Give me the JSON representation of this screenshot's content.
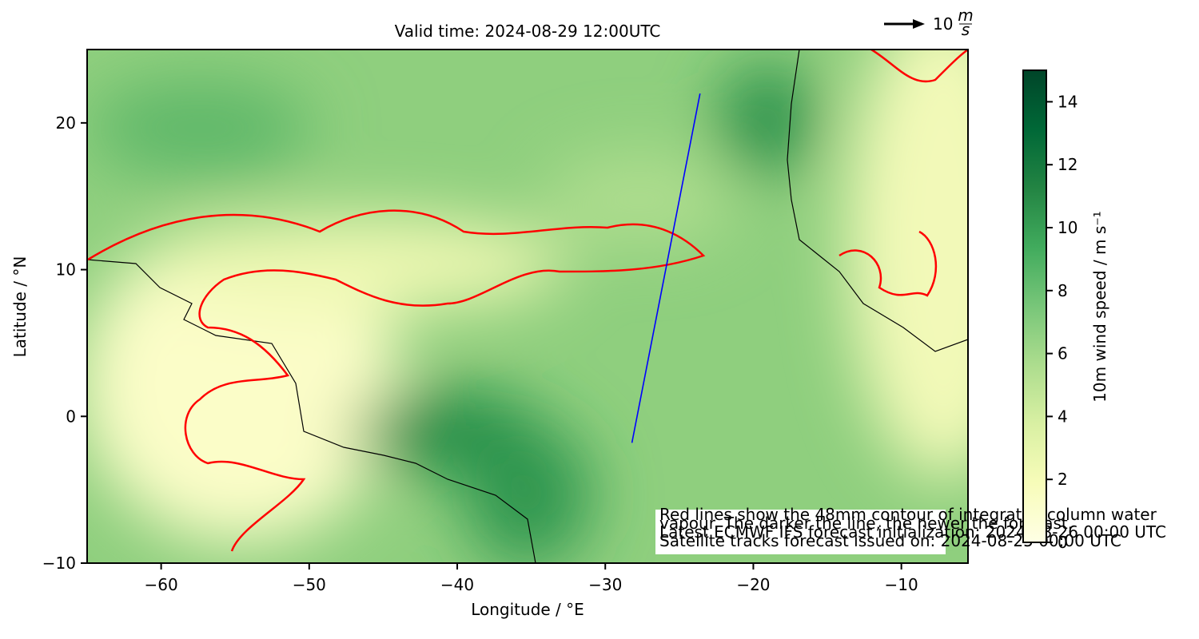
{
  "chart_data": {
    "type": "map",
    "title": "Valid time: 2024-08-29 12:00UTC",
    "xlabel": "Longitude / °E",
    "ylabel": "Latitude / °N",
    "xlim": [
      -65,
      -5.5
    ],
    "ylim": [
      -10,
      25
    ],
    "xticks": [
      {
        "value": -60,
        "label": "−60"
      },
      {
        "value": -50,
        "label": "−50"
      },
      {
        "value": -40,
        "label": "−40"
      },
      {
        "value": -30,
        "label": "−30"
      },
      {
        "value": -20,
        "label": "−20"
      },
      {
        "value": -10,
        "label": "−10"
      }
    ],
    "yticks": [
      {
        "value": -10,
        "label": "−10"
      },
      0,
      10,
      20
    ],
    "track": {
      "color": "#0000ff",
      "x": [
        -28.2,
        -23.6
      ],
      "y": [
        -1.8,
        22
      ]
    },
    "contour_color": "#ff0000",
    "colorbar": {
      "label": "10m wind speed / m s⁻¹",
      "lim": [
        0,
        15
      ],
      "ticks": [
        0,
        2,
        4,
        6,
        8,
        10,
        12,
        14
      ],
      "colors": [
        "#ffffe5",
        "#f7fcb9",
        "#d9f0a3",
        "#addd8e",
        "#78c679",
        "#41ab5d",
        "#238443",
        "#006837",
        "#004529"
      ]
    },
    "quiver_key": {
      "value": 10,
      "unit_top": "m",
      "unit_bottom": "s"
    },
    "annotation": [
      "Red lines show the 48mm contour of integrated column water",
      "vapour. The darker the line, the newer the forecast.",
      "Latest ECMWF IFS forecast initialization: 2024-08-26 00:00 UTC",
      "Satellite tracks forecast issued on: 2024-08-25 00:00 UTC"
    ]
  }
}
